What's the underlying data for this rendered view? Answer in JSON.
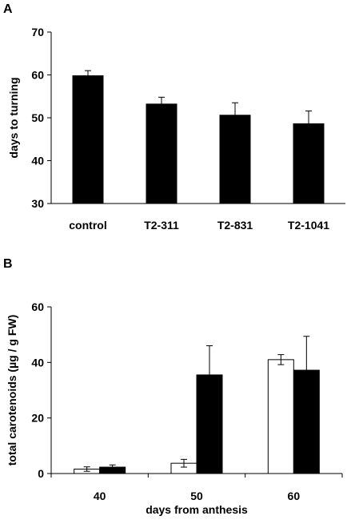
{
  "chart_data": [
    {
      "panel": "A",
      "type": "bar",
      "categories": [
        "control",
        "T2-311",
        "T2-831",
        "T2-1041"
      ],
      "series": [
        {
          "values": [
            59.8,
            53.2,
            50.6,
            48.6
          ],
          "errors": [
            1.2,
            1.6,
            2.9,
            3.0
          ],
          "fill": "#000000"
        }
      ],
      "xlabel": "",
      "ylabel": "days to turning",
      "ylim": [
        30,
        70
      ],
      "yticks": [
        30,
        40,
        50,
        60,
        70
      ],
      "grid": false
    },
    {
      "panel": "B",
      "type": "bar",
      "categories": [
        "40",
        "50",
        "60"
      ],
      "series": [
        {
          "values": [
            1.6,
            3.7,
            41.0
          ],
          "errors": [
            0.8,
            1.4,
            1.8
          ],
          "fill": "#ffffff"
        },
        {
          "values": [
            2.3,
            35.5,
            37.2
          ],
          "errors": [
            0.8,
            10.5,
            12.2
          ],
          "fill": "#000000"
        }
      ],
      "xlabel": "days from anthesis",
      "ylabel": "total carotenoids (µg / g FW)",
      "ylim": [
        0,
        60
      ],
      "yticks": [
        0,
        20,
        40,
        60
      ],
      "grid": false
    }
  ]
}
